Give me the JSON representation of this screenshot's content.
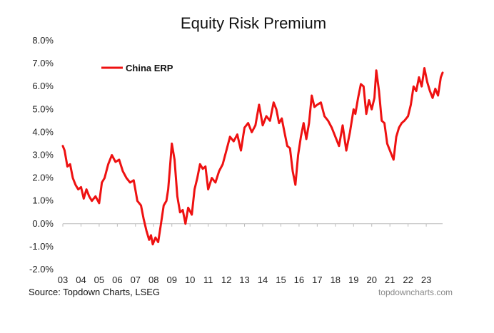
{
  "chart_data": {
    "type": "line",
    "title": "Equity Risk Premium",
    "xlabel": "",
    "ylabel": "",
    "x_range": [
      2003,
      2023.9
    ],
    "ylim": [
      -2,
      8
    ],
    "y_ticks": [
      -2,
      -1,
      0,
      1,
      2,
      3,
      4,
      5,
      6,
      7,
      8
    ],
    "y_tick_labels": [
      "-2.0%",
      "-1.0%",
      "0.0%",
      "1.0%",
      "2.0%",
      "3.0%",
      "4.0%",
      "5.0%",
      "6.0%",
      "7.0%",
      "8.0%"
    ],
    "x_ticks": [
      2003,
      2004,
      2005,
      2006,
      2007,
      2008,
      2009,
      2010,
      2011,
      2012,
      2013,
      2014,
      2015,
      2016,
      2017,
      2018,
      2019,
      2020,
      2021,
      2022,
      2023
    ],
    "x_tick_labels": [
      "03",
      "04",
      "05",
      "06",
      "07",
      "08",
      "09",
      "10",
      "11",
      "12",
      "13",
      "14",
      "15",
      "16",
      "17",
      "18",
      "19",
      "20",
      "21",
      "22",
      "23"
    ],
    "legend": "top-left",
    "series": [
      {
        "name": "China ERP",
        "color": "#ee1111",
        "x": [
          2003.0,
          2003.1,
          2003.25,
          2003.4,
          2003.55,
          2003.7,
          2003.85,
          2004.0,
          2004.15,
          2004.3,
          2004.45,
          2004.6,
          2004.8,
          2005.0,
          2005.15,
          2005.3,
          2005.5,
          2005.7,
          2005.9,
          2006.1,
          2006.3,
          2006.5,
          2006.7,
          2006.9,
          2007.1,
          2007.3,
          2007.45,
          2007.6,
          2007.75,
          2007.85,
          2007.95,
          2008.1,
          2008.25,
          2008.4,
          2008.55,
          2008.7,
          2008.8,
          2008.9,
          2009.0,
          2009.15,
          2009.3,
          2009.45,
          2009.6,
          2009.75,
          2009.9,
          2010.1,
          2010.25,
          2010.4,
          2010.55,
          2010.7,
          2010.85,
          2011.0,
          2011.2,
          2011.4,
          2011.6,
          2011.8,
          2012.0,
          2012.2,
          2012.4,
          2012.6,
          2012.8,
          2013.0,
          2013.2,
          2013.4,
          2013.6,
          2013.8,
          2014.0,
          2014.2,
          2014.4,
          2014.6,
          2014.75,
          2014.9,
          2015.05,
          2015.2,
          2015.35,
          2015.5,
          2015.65,
          2015.8,
          2015.95,
          2016.1,
          2016.25,
          2016.4,
          2016.55,
          2016.7,
          2016.85,
          2017.0,
          2017.2,
          2017.4,
          2017.6,
          2017.8,
          2018.0,
          2018.2,
          2018.4,
          2018.6,
          2018.8,
          2019.0,
          2019.1,
          2019.25,
          2019.4,
          2019.55,
          2019.7,
          2019.85,
          2020.0,
          2020.15,
          2020.25,
          2020.4,
          2020.55,
          2020.7,
          2020.85,
          2021.0,
          2021.1,
          2021.2,
          2021.35,
          2021.5,
          2021.65,
          2021.8,
          2022.0,
          2022.15,
          2022.3,
          2022.45,
          2022.6,
          2022.75,
          2022.9,
          2023.05,
          2023.2,
          2023.35,
          2023.5,
          2023.65,
          2023.8,
          2023.9
        ],
        "values": [
          3.4,
          3.2,
          2.5,
          2.6,
          2.0,
          1.7,
          1.5,
          1.6,
          1.1,
          1.5,
          1.2,
          1.0,
          1.2,
          0.9,
          1.8,
          2.0,
          2.6,
          3.0,
          2.7,
          2.8,
          2.3,
          2.0,
          1.8,
          1.9,
          1.0,
          0.8,
          0.2,
          -0.3,
          -0.7,
          -0.5,
          -0.9,
          -0.6,
          -0.8,
          0.0,
          0.8,
          1.0,
          1.5,
          2.5,
          3.5,
          2.8,
          1.2,
          0.5,
          0.6,
          0.0,
          0.7,
          0.4,
          1.5,
          2.0,
          2.6,
          2.4,
          2.5,
          1.5,
          2.0,
          1.8,
          2.3,
          2.6,
          3.2,
          3.8,
          3.6,
          3.9,
          3.2,
          4.2,
          4.4,
          4.0,
          4.3,
          5.2,
          4.3,
          4.7,
          4.5,
          5.3,
          5.0,
          4.4,
          4.6,
          4.0,
          3.4,
          3.3,
          2.3,
          1.7,
          3.0,
          3.8,
          4.4,
          3.7,
          4.4,
          5.6,
          5.1,
          5.2,
          5.3,
          4.7,
          4.5,
          4.2,
          3.8,
          3.4,
          4.3,
          3.2,
          4.0,
          5.0,
          4.8,
          5.5,
          6.1,
          6.0,
          4.8,
          5.4,
          5.0,
          5.5,
          6.7,
          5.8,
          4.5,
          4.4,
          3.5,
          3.2,
          3.0,
          2.8,
          3.8,
          4.2,
          4.4,
          4.5,
          4.7,
          5.2,
          6.0,
          5.8,
          6.4,
          6.0,
          6.8,
          6.2,
          5.8,
          5.5,
          5.9,
          5.6,
          6.4,
          6.6
        ]
      }
    ],
    "source": "Source: Topdown Charts, LSEG",
    "watermark": "topdowncharts.com"
  }
}
